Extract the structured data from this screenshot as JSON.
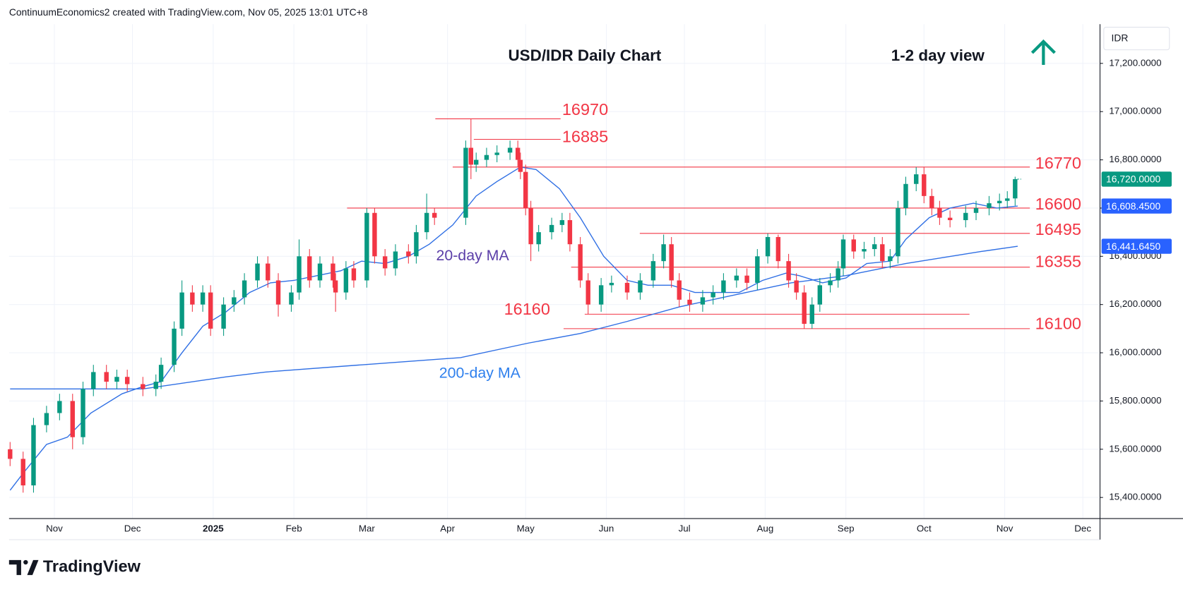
{
  "header": "ContinuumEconomics2 created with TradingView.com, Nov 05, 2025 13:01 UTC+8",
  "brand": "TradingView",
  "chart_data": {
    "type": "candlestick",
    "title": "USD/IDR Daily Chart",
    "subtitle": "1-2 day view",
    "currency": "IDR",
    "ylim": [
      15312.5,
      17362.5
    ],
    "yticks": [
      {
        "value": 15400,
        "label": "15,400.0000"
      },
      {
        "value": 15600,
        "label": "15,600.0000"
      },
      {
        "value": 15800,
        "label": "15,800.0000"
      },
      {
        "value": 16000,
        "label": "16,000.0000"
      },
      {
        "value": 16200,
        "label": "16,200.0000"
      },
      {
        "value": 16400,
        "label": "16,400.0000"
      },
      {
        "value": 16600,
        "label": "16,600.0000"
      },
      {
        "value": 16800,
        "label": "16,800.0000"
      },
      {
        "value": 17000,
        "label": "17,000.0000"
      },
      {
        "value": 17200,
        "label": "17,200.0000"
      }
    ],
    "xlim": [
      13.6,
      432.6
    ],
    "xticks": [
      {
        "value": 31,
        "label": "Nov"
      },
      {
        "value": 61,
        "label": "Dec"
      },
      {
        "value": 92,
        "label": "2025"
      },
      {
        "value": 123,
        "label": "Feb"
      },
      {
        "value": 151,
        "label": "Mar"
      },
      {
        "value": 182,
        "label": "Apr"
      },
      {
        "value": 212,
        "label": "May"
      },
      {
        "value": 243,
        "label": "Jun"
      },
      {
        "value": 273,
        "label": "Jul"
      },
      {
        "value": 304,
        "label": "Aug"
      },
      {
        "value": 335,
        "label": "Sep"
      },
      {
        "value": 365,
        "label": "Oct"
      },
      {
        "value": 396,
        "label": "Nov"
      },
      {
        "value": 426,
        "label": "Dec"
      }
    ],
    "grid": true,
    "candles": {
      "up_color": "#089981",
      "down_color": "#f23645",
      "x": [
        14,
        19,
        23,
        28,
        33,
        38,
        42,
        46,
        51,
        55,
        59,
        65,
        70,
        72,
        77,
        80,
        84,
        88,
        91,
        96,
        100,
        104,
        109,
        113,
        117,
        122,
        125,
        129,
        133,
        138,
        139,
        143,
        146,
        151,
        154,
        158,
        162,
        167,
        170,
        174,
        177,
        189,
        191,
        193,
        197,
        201,
        206,
        209,
        210,
        212,
        214,
        217,
        222,
        226,
        229,
        233,
        236,
        241,
        245,
        251,
        256,
        261,
        265,
        268,
        271,
        275,
        280,
        284,
        288,
        293,
        297,
        301,
        305,
        309,
        313,
        316,
        319,
        322,
        325,
        329,
        332,
        334,
        338,
        342,
        346,
        349,
        352,
        355,
        358,
        362,
        365,
        368,
        371,
        375,
        381,
        385,
        390,
        394,
        397,
        400
      ],
      "open": [
        15600,
        15560,
        15450,
        15700,
        15750,
        15800,
        15650,
        15850,
        15920,
        15880,
        15900,
        15870,
        15850,
        15880,
        15950,
        16100,
        16250,
        16200,
        16250,
        16100,
        16200,
        16230,
        16300,
        16370,
        16300,
        16200,
        16250,
        16400,
        16300,
        16370,
        16300,
        16250,
        16350,
        16300,
        16580,
        16400,
        16350,
        16420,
        16400,
        16500,
        16580,
        16560,
        16850,
        16780,
        16800,
        16820,
        16830,
        16850,
        16800,
        16750,
        16600,
        16450,
        16500,
        16530,
        16550,
        16450,
        16300,
        16200,
        16280,
        16290,
        16250,
        16300,
        16380,
        16450,
        16300,
        16220,
        16200,
        16230,
        16250,
        16300,
        16320,
        16290,
        16400,
        16480,
        16380,
        16300,
        16250,
        16120,
        16200,
        16280,
        16300,
        16350,
        16470,
        16420,
        16430,
        16450,
        16380,
        16400,
        16600,
        16700,
        16740,
        16650,
        16600,
        16560,
        16550,
        16580,
        16600,
        16620,
        16630,
        16640
      ],
      "high": [
        15630,
        15590,
        15730,
        15780,
        15830,
        15830,
        15880,
        15950,
        15950,
        15930,
        15930,
        15900,
        15910,
        15980,
        16130,
        16300,
        16280,
        16280,
        16280,
        16230,
        16260,
        16330,
        16400,
        16400,
        16330,
        16280,
        16470,
        16430,
        16400,
        16400,
        16330,
        16380,
        16380,
        16600,
        16600,
        16430,
        16450,
        16450,
        16530,
        16660,
        16600,
        16880,
        16970,
        16830,
        16850,
        16860,
        16880,
        16880,
        16830,
        16780,
        16630,
        16530,
        16560,
        16580,
        16580,
        16480,
        16330,
        16310,
        16320,
        16320,
        16330,
        16410,
        16490,
        16480,
        16330,
        16250,
        16260,
        16280,
        16330,
        16350,
        16350,
        16430,
        16495,
        16490,
        16410,
        16330,
        16280,
        16230,
        16310,
        16330,
        16380,
        16490,
        16490,
        16460,
        16480,
        16480,
        16430,
        16630,
        16730,
        16770,
        16770,
        16680,
        16630,
        16590,
        16610,
        16630,
        16650,
        16660,
        16670,
        16730
      ],
      "low": [
        15530,
        15420,
        15420,
        15670,
        15720,
        15600,
        15620,
        15820,
        15850,
        15850,
        15840,
        15820,
        15820,
        15850,
        15920,
        16070,
        16170,
        16170,
        16070,
        16070,
        16170,
        16200,
        16270,
        16270,
        16150,
        16170,
        16220,
        16270,
        16270,
        16270,
        16170,
        16220,
        16270,
        16270,
        16370,
        16320,
        16320,
        16370,
        16370,
        16470,
        16530,
        16530,
        16720,
        16750,
        16770,
        16790,
        16800,
        16770,
        16720,
        16570,
        16380,
        16420,
        16470,
        16500,
        16420,
        16270,
        16160,
        16170,
        16250,
        16220,
        16220,
        16270,
        16350,
        16270,
        16190,
        16170,
        16170,
        16200,
        16220,
        16270,
        16260,
        16260,
        16370,
        16350,
        16270,
        16220,
        16100,
        16100,
        16170,
        16250,
        16270,
        16320,
        16390,
        16390,
        16400,
        16350,
        16350,
        16370,
        16570,
        16670,
        16620,
        16570,
        16530,
        16520,
        16520,
        16550,
        16570,
        16590,
        16600,
        16610
      ],
      "close": [
        15560,
        15450,
        15700,
        15750,
        15800,
        15650,
        15850,
        15920,
        15880,
        15900,
        15870,
        15850,
        15880,
        15950,
        16100,
        16250,
        16200,
        16250,
        16100,
        16200,
        16230,
        16300,
        16370,
        16300,
        16200,
        16250,
        16400,
        16300,
        16370,
        16300,
        16250,
        16350,
        16300,
        16580,
        16400,
        16350,
        16420,
        16400,
        16500,
        16580,
        16560,
        16850,
        16780,
        16800,
        16820,
        16830,
        16850,
        16800,
        16750,
        16600,
        16450,
        16500,
        16530,
        16550,
        16450,
        16300,
        16200,
        16280,
        16290,
        16250,
        16300,
        16380,
        16450,
        16300,
        16220,
        16200,
        16230,
        16250,
        16300,
        16320,
        16290,
        16400,
        16480,
        16380,
        16300,
        16250,
        16120,
        16200,
        16280,
        16300,
        16350,
        16470,
        16420,
        16430,
        16450,
        16380,
        16400,
        16600,
        16700,
        16740,
        16650,
        16600,
        16560,
        16550,
        16580,
        16600,
        16620,
        16630,
        16640,
        16720
      ],
      "last_label": "16,720.0000"
    },
    "series": [
      {
        "name": "20-day MA",
        "color": "#2f6fe4",
        "label_color": "#5b3ea8",
        "x": [
          14,
          19,
          28,
          36,
          45,
          57,
          65,
          72,
          80,
          88,
          97,
          106,
          114,
          123,
          132,
          141,
          149,
          158,
          167,
          175,
          184,
          193,
          201,
          210,
          216,
          225,
          233,
          242,
          251,
          259,
          268,
          277,
          285,
          294,
          303,
          312,
          317,
          326,
          335,
          343,
          352,
          358,
          367,
          375,
          384,
          393,
          401
        ],
        "values": [
          15430,
          15500,
          15620,
          15650,
          15750,
          15830,
          15860,
          15880,
          16000,
          16110,
          16170,
          16250,
          16290,
          16300,
          16320,
          16340,
          16380,
          16370,
          16400,
          16450,
          16530,
          16650,
          16710,
          16770,
          16760,
          16680,
          16560,
          16400,
          16300,
          16280,
          16280,
          16250,
          16250,
          16250,
          16300,
          16330,
          16320,
          16290,
          16310,
          16370,
          16380,
          16470,
          16560,
          16600,
          16620,
          16600,
          16608.45
        ],
        "last_label": "16,608.4500"
      },
      {
        "name": "200-day MA",
        "color": "#2f6fe4",
        "label_color": "#2f80ed",
        "x": [
          14,
          65,
          97,
          112,
          149,
          187,
          213,
          233,
          251,
          271,
          288,
          314,
          335,
          358,
          387,
          401
        ],
        "values": [
          15850,
          15850,
          15900,
          15920,
          15950,
          15980,
          16040,
          16080,
          16130,
          16190,
          16230,
          16290,
          16320,
          16370,
          16420,
          16441.645
        ],
        "last_label": "16,441.6450"
      }
    ],
    "levels_color": "#f23645",
    "levels": [
      {
        "value": 16970
      },
      {
        "value": 16885
      },
      {
        "value": 16770
      },
      {
        "value": 16600
      },
      {
        "value": 16495
      },
      {
        "value": 16355
      },
      {
        "value": 16160
      },
      {
        "value": 16100
      }
    ]
  }
}
